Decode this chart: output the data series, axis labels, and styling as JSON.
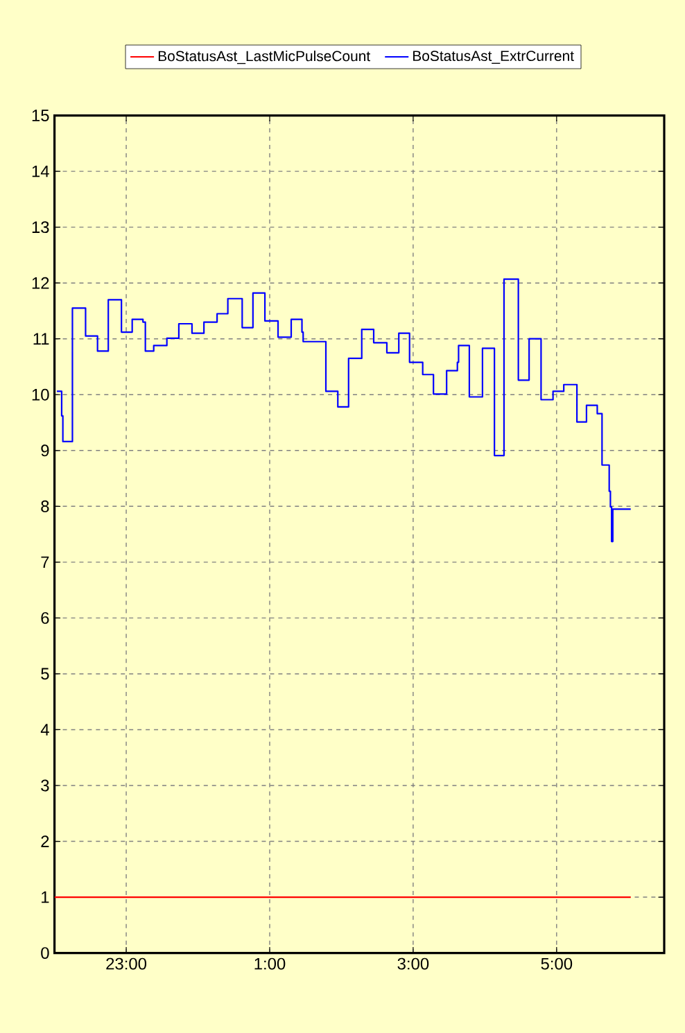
{
  "chart_data": {
    "type": "step",
    "xlim": [
      "2000-01-01T22:00",
      "2000-01-02T06:30"
    ],
    "ylim": [
      0,
      15
    ],
    "xticks": [
      {
        "value": "2000-01-01T23:00",
        "label": "23:00"
      },
      {
        "value": "2000-01-02T01:00",
        "label": "1:00"
      },
      {
        "value": "2000-01-02T03:00",
        "label": "3:00"
      },
      {
        "value": "2000-01-02T05:00",
        "label": "5:00"
      }
    ],
    "yticks": [
      0,
      1,
      2,
      3,
      4,
      5,
      6,
      7,
      8,
      9,
      10,
      11,
      12,
      13,
      14,
      15
    ],
    "grid": true,
    "legend": "top",
    "line_style": "solid",
    "series": [
      {
        "name": "BoStatusAst_LastMicPulseCount",
        "color": "#ff0000",
        "x": [
          "2000-01-01T22:00",
          "2000-01-02T06:02"
        ],
        "values": [
          1,
          1
        ]
      },
      {
        "name": "BoStatusAst_ExtrCurrent",
        "color": "#0000ff",
        "x": [
          "2000-01-01T22:02",
          "2000-01-01T22:06",
          "2000-01-01T22:07",
          "2000-01-01T22:15",
          "2000-01-01T22:26",
          "2000-01-01T22:36",
          "2000-01-01T22:45",
          "2000-01-01T22:56",
          "2000-01-01T23:05",
          "2000-01-01T23:14",
          "2000-01-01T23:16",
          "2000-01-01T23:23",
          "2000-01-01T23:34",
          "2000-01-01T23:44",
          "2000-01-01T23:55",
          "2000-01-02T00:05",
          "2000-01-02T00:16",
          "2000-01-02T00:25",
          "2000-01-02T00:37",
          "2000-01-02T00:46",
          "2000-01-02T00:56",
          "2000-01-02T01:07",
          "2000-01-02T01:18",
          "2000-01-02T01:27",
          "2000-01-02T01:28",
          "2000-01-02T01:47",
          "2000-01-02T01:57",
          "2000-01-02T02:06",
          "2000-01-02T02:17",
          "2000-01-02T02:27",
          "2000-01-02T02:38",
          "2000-01-02T02:48",
          "2000-01-02T02:57",
          "2000-01-02T03:08",
          "2000-01-02T03:17",
          "2000-01-02T03:28",
          "2000-01-02T03:37",
          "2000-01-02T03:38",
          "2000-01-02T03:47",
          "2000-01-02T03:58",
          "2000-01-02T04:08",
          "2000-01-02T04:16",
          "2000-01-02T04:28",
          "2000-01-02T04:37",
          "2000-01-02T04:47",
          "2000-01-02T04:57",
          "2000-01-02T05:06",
          "2000-01-02T05:17",
          "2000-01-02T05:25",
          "2000-01-02T05:34",
          "2000-01-02T05:38",
          "2000-01-02T05:44",
          "2000-01-02T05:45",
          "2000-01-02T05:46",
          "2000-01-02T05:47",
          "2000-01-02T06:02"
        ],
        "values": [
          10.06,
          9.62,
          9.16,
          11.55,
          11.05,
          10.78,
          11.7,
          11.12,
          11.35,
          11.3,
          10.78,
          10.88,
          11.01,
          11.27,
          11.1,
          11.3,
          11.45,
          11.72,
          11.2,
          11.82,
          11.32,
          11.03,
          11.35,
          11.12,
          10.95,
          10.06,
          9.78,
          10.65,
          11.17,
          10.93,
          10.75,
          11.1,
          10.58,
          10.36,
          10.01,
          10.43,
          10.58,
          10.88,
          9.96,
          10.83,
          8.91,
          12.07,
          10.26,
          11.0,
          9.91,
          10.06,
          10.18,
          9.51,
          9.81,
          9.66,
          8.74,
          8.27,
          7.99,
          7.37,
          7.95,
          7.95
        ]
      }
    ]
  }
}
